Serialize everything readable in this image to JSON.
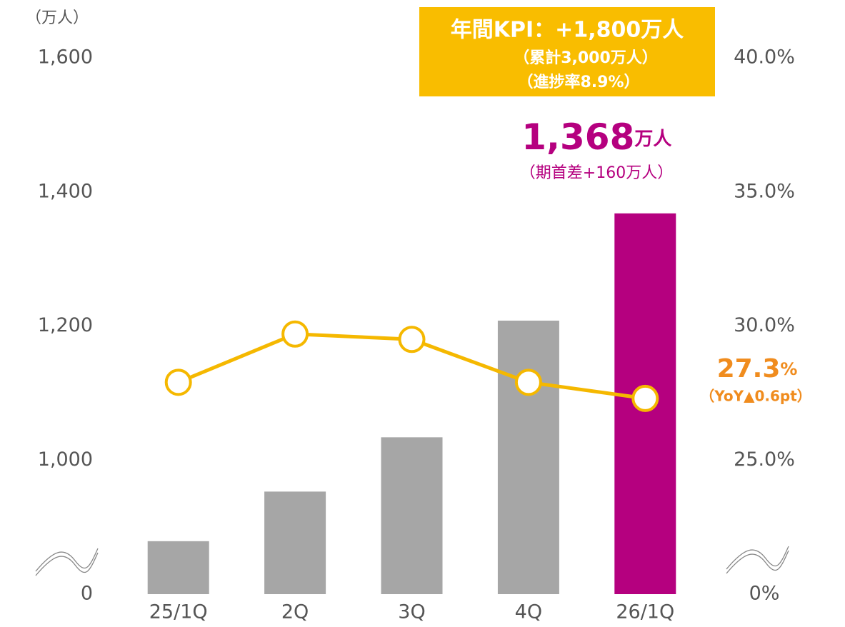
{
  "chart_data": {
    "type": "bar",
    "y_unit_label": "（万人）",
    "categories": [
      "25/1Q",
      "2Q",
      "3Q",
      "4Q",
      "26/1Q"
    ],
    "series": [
      {
        "type": "bar",
        "colors": [
          "#a6a6a6",
          "#a6a6a6",
          "#a6a6a6",
          "#a6a6a6",
          "#b5007f"
        ],
        "values": [
          879,
          953,
          1034,
          1208,
          1368
        ],
        "value_labels": [
          null,
          null,
          null,
          null,
          "1,368万人"
        ]
      },
      {
        "type": "line",
        "axis": "y2",
        "color": "#f5b800",
        "values": [
          27.9,
          29.7,
          29.5,
          27.9,
          27.3
        ],
        "value_labels": [
          null,
          null,
          null,
          null,
          "27.3%"
        ]
      }
    ],
    "ylim": [
      0,
      1600
    ],
    "y_break": [
      0,
      800
    ],
    "yticks": [
      {
        "value": 0,
        "label": "0"
      },
      {
        "value": 1000,
        "label": "1,000"
      },
      {
        "value": 1200,
        "label": "1,200"
      },
      {
        "value": 1400,
        "label": "1,400"
      },
      {
        "value": 1600,
        "label": "1,600"
      }
    ],
    "y2lim": [
      0,
      40
    ],
    "y2_break": [
      0,
      20
    ],
    "y2ticks": [
      {
        "value": 0,
        "label": "0%"
      },
      {
        "value": 25,
        "label": "25.0%"
      },
      {
        "value": 30,
        "label": "30.0%"
      },
      {
        "value": 35,
        "label": "35.0%"
      },
      {
        "value": 40,
        "label": "40.0%"
      }
    ],
    "annotations": {
      "kpi": [
        "年間KPI：+1,800万人",
        "（累計3,000万人）",
        "（進捗率8.9%）"
      ],
      "bar_note": "（期首差+160万人）",
      "line_note": "（YoY▲0.6pt）"
    }
  }
}
